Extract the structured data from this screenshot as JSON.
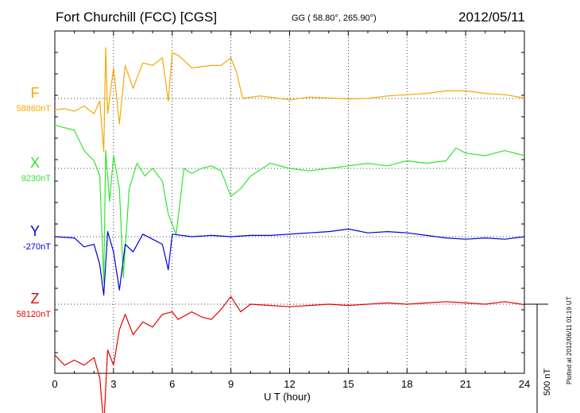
{
  "header": {
    "title": "Fort Churchill (FCC)  [CGS]",
    "coords": "GG ( 58.80°, 265.90°)",
    "date": "2012/05/11",
    "plotted": "Plotted at 2012/06/11 01:19 UT"
  },
  "chart_data": {
    "type": "line",
    "xlabel": "U T (hour)",
    "xlim": [
      0,
      24
    ],
    "x_ticks": [
      "0",
      "3",
      "6",
      "9",
      "12",
      "15",
      "18",
      "21",
      "24"
    ],
    "scale_bar": {
      "value": 500,
      "label": "500 nT"
    },
    "series": [
      {
        "name": "F",
        "baseline_label": "58860nT",
        "baseline": 58860,
        "color": "#f5a800",
        "points": [
          [
            0,
            58815
          ],
          [
            0.5,
            58820
          ],
          [
            1,
            58810
          ],
          [
            1.5,
            58830
          ],
          [
            2,
            58800
          ],
          [
            2.3,
            58850
          ],
          [
            2.5,
            58650
          ],
          [
            2.6,
            59060
          ],
          [
            2.7,
            58800
          ],
          [
            3,
            58980
          ],
          [
            3.3,
            58760
          ],
          [
            3.6,
            58990
          ],
          [
            4,
            58900
          ],
          [
            4.5,
            59000
          ],
          [
            5,
            58990
          ],
          [
            5.5,
            59020
          ],
          [
            5.8,
            58850
          ],
          [
            6,
            59040
          ],
          [
            6.3,
            59030
          ],
          [
            6.6,
            59010
          ],
          [
            7,
            58980
          ],
          [
            7.5,
            58985
          ],
          [
            8,
            58990
          ],
          [
            8.5,
            58990
          ],
          [
            9,
            59020
          ],
          [
            9.3,
            58960
          ],
          [
            9.6,
            58860
          ],
          [
            10,
            58865
          ],
          [
            10.5,
            58870
          ],
          [
            11,
            58865
          ],
          [
            11.5,
            58860
          ],
          [
            12,
            58855
          ],
          [
            13,
            58865
          ],
          [
            14,
            58862
          ],
          [
            15,
            58858
          ],
          [
            16,
            58860
          ],
          [
            17,
            58870
          ],
          [
            18,
            58875
          ],
          [
            19,
            58880
          ],
          [
            20,
            58890
          ],
          [
            21,
            58890
          ],
          [
            22,
            58880
          ],
          [
            23,
            58875
          ],
          [
            24,
            58862
          ]
        ]
      },
      {
        "name": "X",
        "baseline_label": "9230nT",
        "baseline": 9230,
        "color": "#2ee82e",
        "points": [
          [
            0,
            9400
          ],
          [
            1,
            9380
          ],
          [
            1.5,
            9300
          ],
          [
            2,
            9260
          ],
          [
            2.3,
            9200
          ],
          [
            2.5,
            8780
          ],
          [
            2.6,
            9300
          ],
          [
            2.8,
            9100
          ],
          [
            3,
            9280
          ],
          [
            3.3,
            9150
          ],
          [
            3.5,
            8800
          ],
          [
            3.8,
            9150
          ],
          [
            4.2,
            9250
          ],
          [
            4.6,
            9200
          ],
          [
            5,
            9230
          ],
          [
            5.5,
            9180
          ],
          [
            5.8,
            9050
          ],
          [
            6.2,
            8970
          ],
          [
            6.6,
            9230
          ],
          [
            7,
            9210
          ],
          [
            7.5,
            9230
          ],
          [
            8,
            9240
          ],
          [
            8.5,
            9220
          ],
          [
            9,
            9120
          ],
          [
            9.5,
            9150
          ],
          [
            10,
            9200
          ],
          [
            11,
            9250
          ],
          [
            12,
            9230
          ],
          [
            13,
            9220
          ],
          [
            14,
            9230
          ],
          [
            15,
            9240
          ],
          [
            16,
            9250
          ],
          [
            17,
            9240
          ],
          [
            18,
            9260
          ],
          [
            19,
            9250
          ],
          [
            20,
            9260
          ],
          [
            20.5,
            9310
          ],
          [
            21,
            9290
          ],
          [
            22,
            9280
          ],
          [
            23,
            9300
          ],
          [
            24,
            9280
          ]
        ]
      },
      {
        "name": "Y",
        "baseline_label": "-270nT",
        "baseline": -270,
        "color": "#0000d8",
        "points": [
          [
            0,
            -270
          ],
          [
            1,
            -275
          ],
          [
            1.5,
            -310
          ],
          [
            2,
            -300
          ],
          [
            2.3,
            -380
          ],
          [
            2.5,
            -500
          ],
          [
            2.7,
            -250
          ],
          [
            3,
            -330
          ],
          [
            3.3,
            -480
          ],
          [
            3.6,
            -300
          ],
          [
            4,
            -330
          ],
          [
            4.5,
            -260
          ],
          [
            5,
            -280
          ],
          [
            5.5,
            -300
          ],
          [
            5.8,
            -400
          ],
          [
            6,
            -260
          ],
          [
            7,
            -270
          ],
          [
            8,
            -265
          ],
          [
            9,
            -270
          ],
          [
            10,
            -265
          ],
          [
            11,
            -265
          ],
          [
            12,
            -260
          ],
          [
            13,
            -255
          ],
          [
            14,
            -250
          ],
          [
            15,
            -240
          ],
          [
            16,
            -255
          ],
          [
            17,
            -250
          ],
          [
            18,
            -255
          ],
          [
            19,
            -265
          ],
          [
            20,
            -275
          ],
          [
            21,
            -280
          ],
          [
            22,
            -275
          ],
          [
            23,
            -280
          ],
          [
            24,
            -270
          ]
        ]
      },
      {
        "name": "Z",
        "baseline_label": "58120nT",
        "baseline": 58120,
        "color": "#e80000",
        "points": [
          [
            0,
            57920
          ],
          [
            0.5,
            57880
          ],
          [
            1,
            57900
          ],
          [
            1.5,
            57880
          ],
          [
            2,
            57910
          ],
          [
            2.3,
            57830
          ],
          [
            2.5,
            57640
          ],
          [
            2.7,
            57940
          ],
          [
            3,
            57880
          ],
          [
            3.3,
            58020
          ],
          [
            3.6,
            58080
          ],
          [
            4,
            58000
          ],
          [
            4.5,
            58050
          ],
          [
            5,
            58030
          ],
          [
            5.5,
            58080
          ],
          [
            6,
            58090
          ],
          [
            6.3,
            58060
          ],
          [
            7,
            58090
          ],
          [
            7.5,
            58070
          ],
          [
            8,
            58060
          ],
          [
            8.5,
            58100
          ],
          [
            9,
            58150
          ],
          [
            9.5,
            58090
          ],
          [
            10,
            58120
          ],
          [
            11,
            58115
          ],
          [
            12,
            58110
          ],
          [
            13,
            58115
          ],
          [
            14,
            58120
          ],
          [
            15,
            58115
          ],
          [
            16,
            58120
          ],
          [
            17,
            58125
          ],
          [
            18,
            58120
          ],
          [
            19,
            58125
          ],
          [
            20,
            58130
          ],
          [
            21,
            58125
          ],
          [
            22,
            58120
          ],
          [
            23,
            58130
          ],
          [
            24,
            58118
          ]
        ]
      }
    ]
  }
}
